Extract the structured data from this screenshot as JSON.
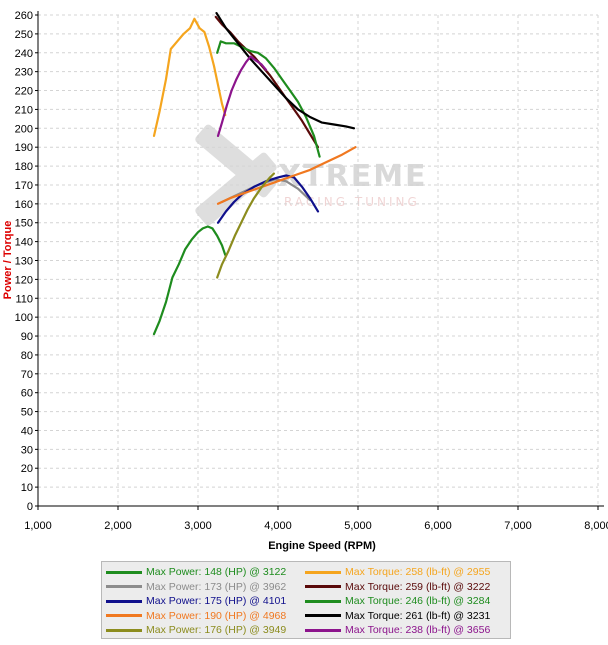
{
  "chart_data": {
    "type": "line",
    "xlabel": "Engine Speed (RPM)",
    "ylabel": "Power / Torque",
    "xlim": [
      1000,
      8000
    ],
    "ylim": [
      0,
      260
    ],
    "x_ticks": [
      "1,000",
      "2,000",
      "3,000",
      "4,000",
      "5,000",
      "6,000",
      "7,000",
      "8,000"
    ],
    "y_ticks": [
      0,
      10,
      20,
      30,
      40,
      50,
      60,
      70,
      80,
      90,
      100,
      110,
      120,
      130,
      140,
      150,
      160,
      170,
      180,
      190,
      200,
      210,
      220,
      230,
      240,
      250,
      260
    ],
    "grid": true,
    "legend_position": "bottom",
    "logo": {
      "name": "xtreme-racing-tuning-logo",
      "text_main": "XTREME",
      "text_sub": "RACING TUNING"
    },
    "series": [
      {
        "name": "Max Power: 148 (HP) @ 3122",
        "color": "#1e8c1e",
        "x": [
          2450,
          2520,
          2600,
          2680,
          2760,
          2840,
          2920,
          3000,
          3060,
          3122,
          3180,
          3240,
          3300,
          3340
        ],
        "y": [
          91,
          98,
          108,
          121,
          128,
          136,
          141,
          145,
          147,
          148,
          147,
          143,
          138,
          133
        ]
      },
      {
        "name": "Max Power: 173 (HP) @ 3962",
        "color": "#8c8c8c",
        "x": [
          3300,
          3450,
          3600,
          3750,
          3962,
          4100,
          4250,
          4400
        ],
        "y": [
          161,
          164,
          167,
          170,
          173,
          172,
          168,
          162
        ]
      },
      {
        "name": "Max Power: 175 (HP) @ 4101",
        "color": "#10108c",
        "x": [
          3250,
          3350,
          3450,
          3550,
          3700,
          3850,
          4000,
          4101,
          4200,
          4300,
          4400,
          4500
        ],
        "y": [
          150,
          156,
          161,
          165,
          169,
          172,
          174,
          175,
          174,
          169,
          163,
          156
        ]
      },
      {
        "name": "Max Power: 190 (HP) @ 4968",
        "color": "#f07820",
        "x": [
          3250,
          3400,
          3600,
          3800,
          4000,
          4200,
          4400,
          4600,
          4800,
          4968
        ],
        "y": [
          160,
          163,
          166,
          169,
          172,
          175,
          178,
          182,
          186,
          190
        ]
      },
      {
        "name": "Max Power: 176 (HP) @ 3949",
        "color": "#8c8c1e",
        "x": [
          3240,
          3300,
          3380,
          3460,
          3540,
          3620,
          3700,
          3800,
          3900,
          3949
        ],
        "y": [
          121,
          128,
          135,
          143,
          150,
          157,
          163,
          169,
          174,
          176
        ]
      },
      {
        "name": "Max Torque: 258 (lb-ft) @ 2955",
        "color": "#f5a51e",
        "x": [
          2450,
          2520,
          2600,
          2660,
          2740,
          2820,
          2900,
          2955,
          3020,
          3080,
          3140,
          3200,
          3260,
          3300,
          3340
        ],
        "y": [
          196,
          209,
          226,
          242,
          246,
          250,
          253,
          258,
          253,
          251,
          243,
          233,
          221,
          213,
          207
        ]
      },
      {
        "name": "Max Torque: 259 (lb-ft) @ 3222",
        "color": "#5a0a0a",
        "x": [
          3222,
          3300,
          3400,
          3500,
          3600,
          3700,
          3800,
          3900,
          4000,
          4100,
          4200,
          4300,
          4400,
          4500
        ],
        "y": [
          259,
          255,
          251,
          246,
          242,
          238,
          233,
          228,
          222,
          216,
          210,
          204,
          197,
          190
        ]
      },
      {
        "name": "Max Torque: 246 (lb-ft) @ 3284",
        "color": "#1e8c1e",
        "x": [
          3240,
          3284,
          3350,
          3450,
          3550,
          3650,
          3750,
          3850,
          3950,
          4050,
          4150,
          4250,
          4350,
          4450,
          4520
        ],
        "y": [
          240,
          246,
          245,
          245,
          243,
          241,
          240,
          237,
          232,
          226,
          220,
          214,
          206,
          196,
          185
        ]
      },
      {
        "name": "Max Torque: 261 (lb-ft) @ 3231",
        "color": "#000000",
        "x": [
          3231,
          3350,
          3500,
          3650,
          3800,
          3950,
          4100,
          4250,
          4400,
          4550,
          4700,
          4850,
          4950
        ],
        "y": [
          261,
          253,
          245,
          237,
          230,
          223,
          216,
          210,
          206,
          203,
          202,
          201,
          200
        ]
      },
      {
        "name": "Max Torque: 238 (lb-ft) @ 3656",
        "color": "#8c148c",
        "x": [
          3250,
          3300,
          3360,
          3420,
          3480,
          3540,
          3600,
          3656,
          3720,
          3790,
          3850
        ],
        "y": [
          196,
          203,
          212,
          220,
          226,
          231,
          235,
          238,
          236,
          234,
          231
        ]
      }
    ]
  }
}
